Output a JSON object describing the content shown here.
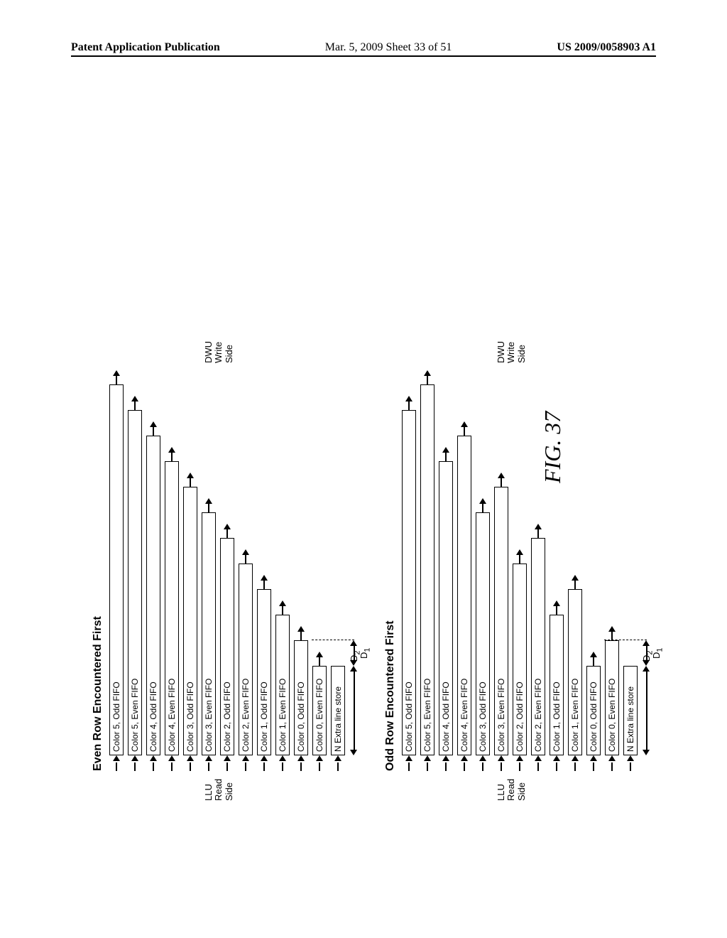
{
  "header": {
    "pub_left": "Patent Application Publication",
    "pub_date": "Mar. 5, 2009  Sheet 33 of 51",
    "pub_right": "US 2009/0058903 A1"
  },
  "figure_caption": "FIG. 37",
  "side_labels": {
    "llu": "LLU\nRead\nSide",
    "dwu": "DWU\nWrite\nSide"
  },
  "dim_labels": {
    "d1": "D",
    "d1_sub": "1",
    "d2": "D",
    "d2_sub": "2"
  },
  "extra_line_label": "N Extra line store",
  "sections": [
    {
      "title": "Even Row Encountered First",
      "base_width": 126,
      "step": 36,
      "extra_first_width": 126,
      "d1_span": 36,
      "rows": [
        {
          "label": "Color 5, Odd FIFO",
          "len_idx": 11
        },
        {
          "label": "Color 5, Even FIFO",
          "len_idx": 10
        },
        {
          "label": "Color 4, Odd FIFO",
          "len_idx": 9
        },
        {
          "label": "Color 4, Even FIFO",
          "len_idx": 8
        },
        {
          "label": "Color 3, Odd FIFO",
          "len_idx": 7
        },
        {
          "label": "Color 3, Even FIFO",
          "len_idx": 6
        },
        {
          "label": "Color 2, Odd FIFO",
          "len_idx": 5
        },
        {
          "label": "Color 2, Even FIFO",
          "len_idx": 4
        },
        {
          "label": "Color 1, Odd FIFO",
          "len_idx": 3
        },
        {
          "label": "Color 1, Even FIFO",
          "len_idx": 2
        },
        {
          "label": "Color 0, Odd FIFO",
          "len_idx": 1
        },
        {
          "label": "Color 0, Even FIFO",
          "len_idx": 0
        }
      ]
    },
    {
      "title": "Odd Row Encountered First",
      "base_width": 126,
      "step": 36,
      "extra_first_width": 126,
      "d1_span": 36,
      "rows": [
        {
          "label": "Color 5, Odd FIFO",
          "len_idx": 10
        },
        {
          "label": "Color 5, Even FIFO",
          "len_idx": 11
        },
        {
          "label": "Color 4, Odd FIFO",
          "len_idx": 8
        },
        {
          "label": "Color 4, Even FIFO",
          "len_idx": 9
        },
        {
          "label": "Color 3, Odd FIFO",
          "len_idx": 6
        },
        {
          "label": "Color 3, Even FIFO",
          "len_idx": 7
        },
        {
          "label": "Color 2, Odd FIFO",
          "len_idx": 4
        },
        {
          "label": "Color 2, Even FIFO",
          "len_idx": 5
        },
        {
          "label": "Color 1, Odd FIFO",
          "len_idx": 2
        },
        {
          "label": "Color 1, Even FIFO",
          "len_idx": 3
        },
        {
          "label": "Color 0, Odd FIFO",
          "len_idx": 0
        },
        {
          "label": "Color 0, Even FIFO",
          "len_idx": 1
        }
      ]
    }
  ],
  "colors": {
    "line": "#000000",
    "bg": "#ffffff"
  }
}
